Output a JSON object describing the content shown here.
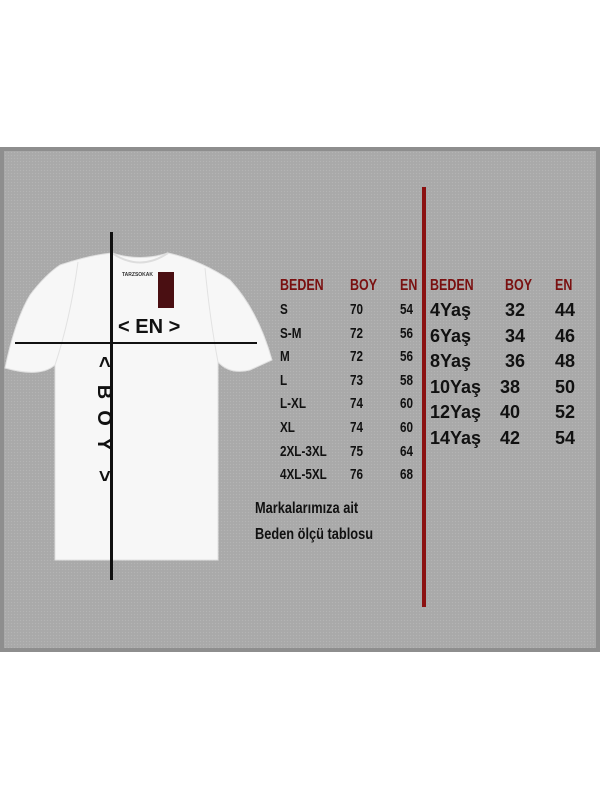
{
  "shirt": {
    "brand_label": "TARZSOKAK",
    "width_label": "< EN >",
    "length_label": [
      "<",
      "B",
      "O",
      "Y",
      ">"
    ]
  },
  "adult_table": {
    "headers": [
      "BEDEN",
      "BOY",
      "EN"
    ],
    "rows": [
      [
        "S",
        "70",
        "54"
      ],
      [
        "S-M",
        "72",
        "56"
      ],
      [
        "M",
        "72",
        "56"
      ],
      [
        "L",
        "73",
        "58"
      ],
      [
        "L-XL",
        "74",
        "60"
      ],
      [
        "XL",
        "74",
        "60"
      ],
      [
        "2XL-3XL",
        "75",
        "64"
      ],
      [
        "4XL-5XL",
        "76",
        "68"
      ]
    ]
  },
  "kids_table": {
    "headers": [
      "BEDEN",
      "BOY",
      "EN"
    ],
    "rows": [
      [
        "4Yaş",
        "32",
        "44"
      ],
      [
        "6Yaş",
        "34",
        "46"
      ],
      [
        "8Yaş",
        "36",
        "48"
      ],
      [
        "10Yaş",
        "38",
        "50"
      ],
      [
        "12Yaş",
        "40",
        "52"
      ],
      [
        "14Yaş",
        "42",
        "54"
      ]
    ]
  },
  "note": [
    "Markalarımıza ait",
    "Beden ölçü tablosu"
  ],
  "colors": {
    "header": "#7a1010",
    "divider": "#8b1010",
    "background": "#a9a9a9"
  }
}
